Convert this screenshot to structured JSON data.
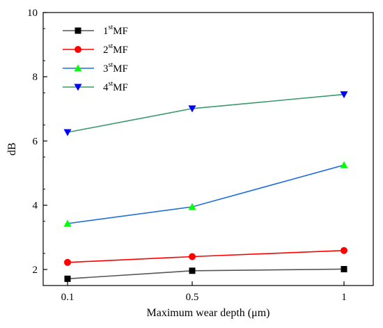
{
  "chart_data": {
    "type": "line",
    "title": "",
    "xlabel": "Maximum wear depth (μm)",
    "ylabel": "dB",
    "categories": [
      "0.1",
      "0.5",
      "1"
    ],
    "ylim": [
      1.5,
      10
    ],
    "yticks": [
      2,
      4,
      6,
      8,
      10
    ],
    "grid": false,
    "legend_position": "top-left",
    "series": [
      {
        "name": "1stMF",
        "name_base": "1",
        "name_sup": "st",
        "name_rest": "MF",
        "marker": "square",
        "line_color": "#555555",
        "marker_color": "#000000",
        "values": [
          1.71,
          1.96,
          2.01
        ]
      },
      {
        "name": "2stMF",
        "name_base": "2",
        "name_sup": "st",
        "name_rest": "MF",
        "marker": "circle",
        "line_color": "#ff0000",
        "marker_color": "#ff0000",
        "values": [
          2.22,
          2.4,
          2.59
        ]
      },
      {
        "name": "3stMF",
        "name_base": "3",
        "name_sup": "st",
        "name_rest": "MF",
        "marker": "triangle-up",
        "line_color": "#1e6fd9",
        "marker_color": "#00ff00",
        "values": [
          3.43,
          3.95,
          5.25
        ]
      },
      {
        "name": "4stMF",
        "name_base": "4",
        "name_sup": "st",
        "name_rest": "MF",
        "marker": "triangle-down",
        "line_color": "#3a9a6a",
        "marker_color": "#0000ff",
        "values": [
          6.27,
          7.01,
          7.45
        ]
      }
    ]
  }
}
